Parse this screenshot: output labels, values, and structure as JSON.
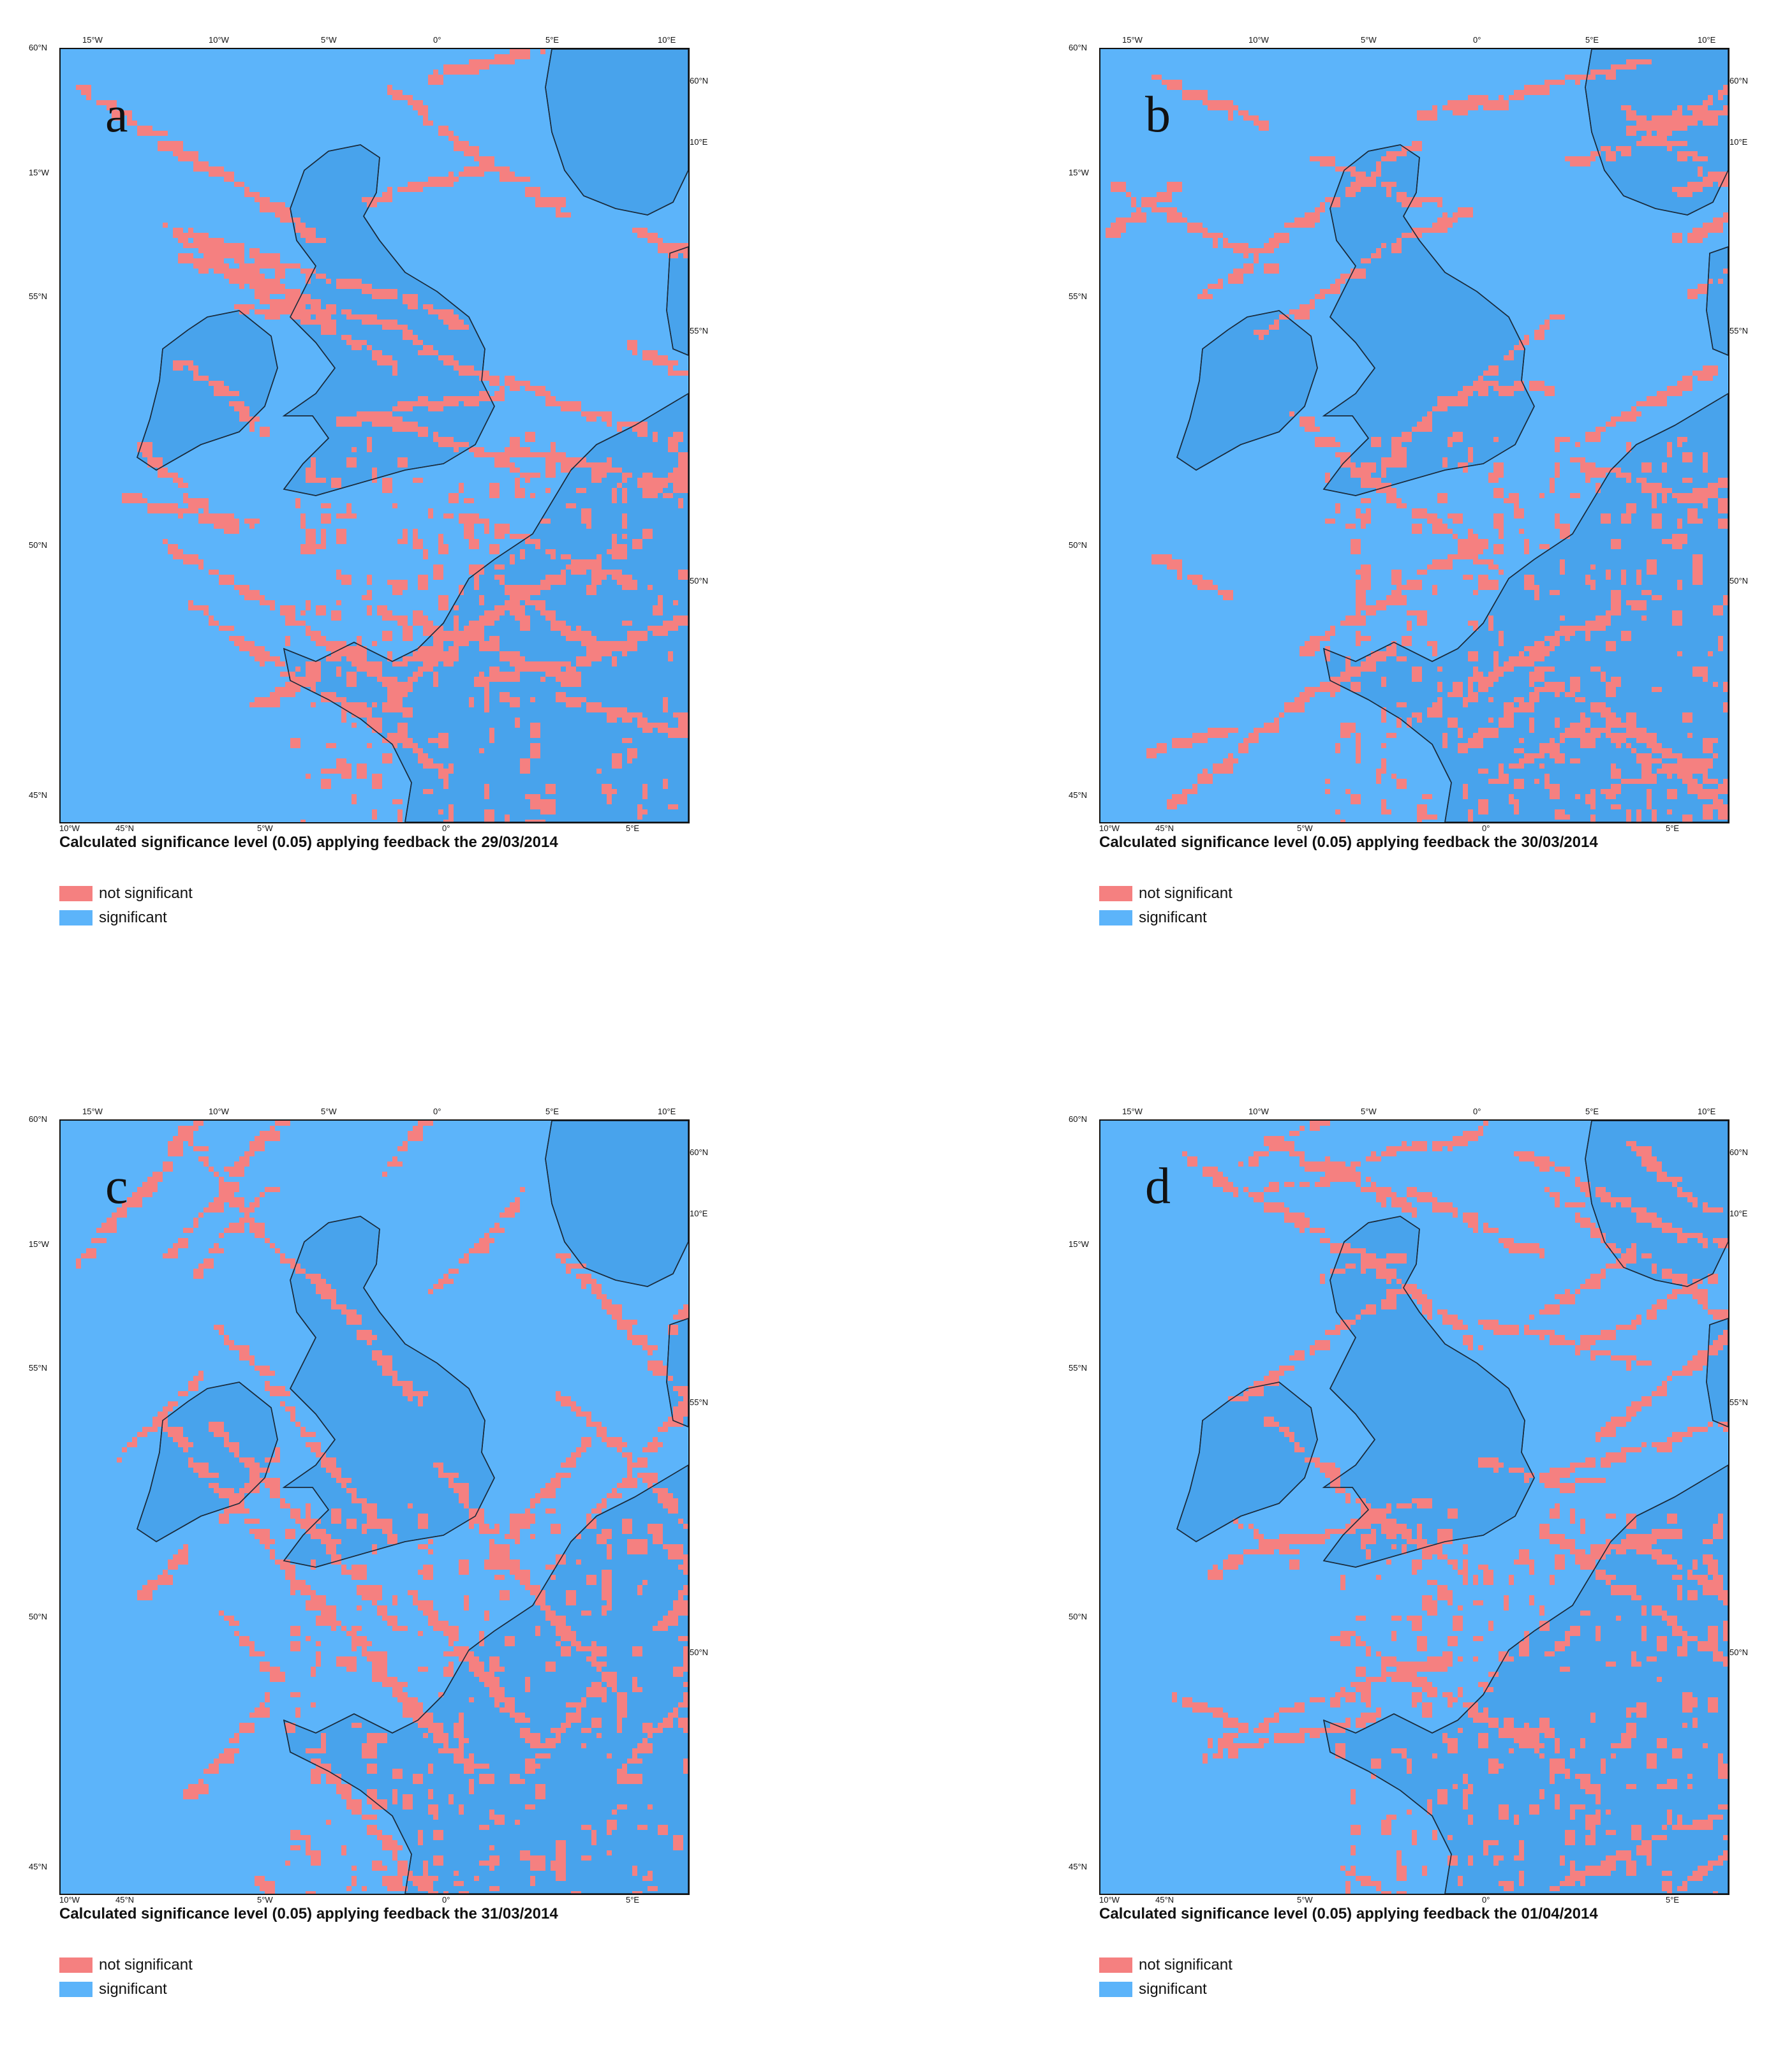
{
  "panels": [
    {
      "letter": "a",
      "caption": "Calculated significance level (0.05) applying feedback the 29/03/2014",
      "seed": 11
    },
    {
      "letter": "b",
      "caption": "Calculated significance level (0.05) applying feedback the 30/03/2014",
      "seed": 23
    },
    {
      "letter": "c",
      "caption": "Calculated significance level (0.05) applying feedback the 31/03/2014",
      "seed": 37
    },
    {
      "letter": "d",
      "caption": "Calculated significance level (0.05) applying feedback the 01/04/2014",
      "seed": 53
    }
  ],
  "legend": [
    {
      "label": "not significant",
      "color": "#f58080"
    },
    {
      "label": "significant",
      "color": "#5cb4fa"
    }
  ],
  "colors": {
    "sea": "#5cb4fa",
    "land": "#48a3ec",
    "not_significant": "#f58080",
    "coast": "#1a2a3a"
  },
  "axis_labels": {
    "top": [
      "15°W",
      "10°W",
      "5°W",
      "0°",
      "5°E",
      "10°E"
    ],
    "left": [
      "60°N",
      "15°W",
      "55°N",
      "50°N",
      "45°N"
    ],
    "right": [
      "60°N",
      "10°E",
      "55°N",
      "50°N"
    ],
    "bottom": [
      "10°W",
      "45°N",
      "5°W",
      "0°",
      "5°E"
    ]
  }
}
